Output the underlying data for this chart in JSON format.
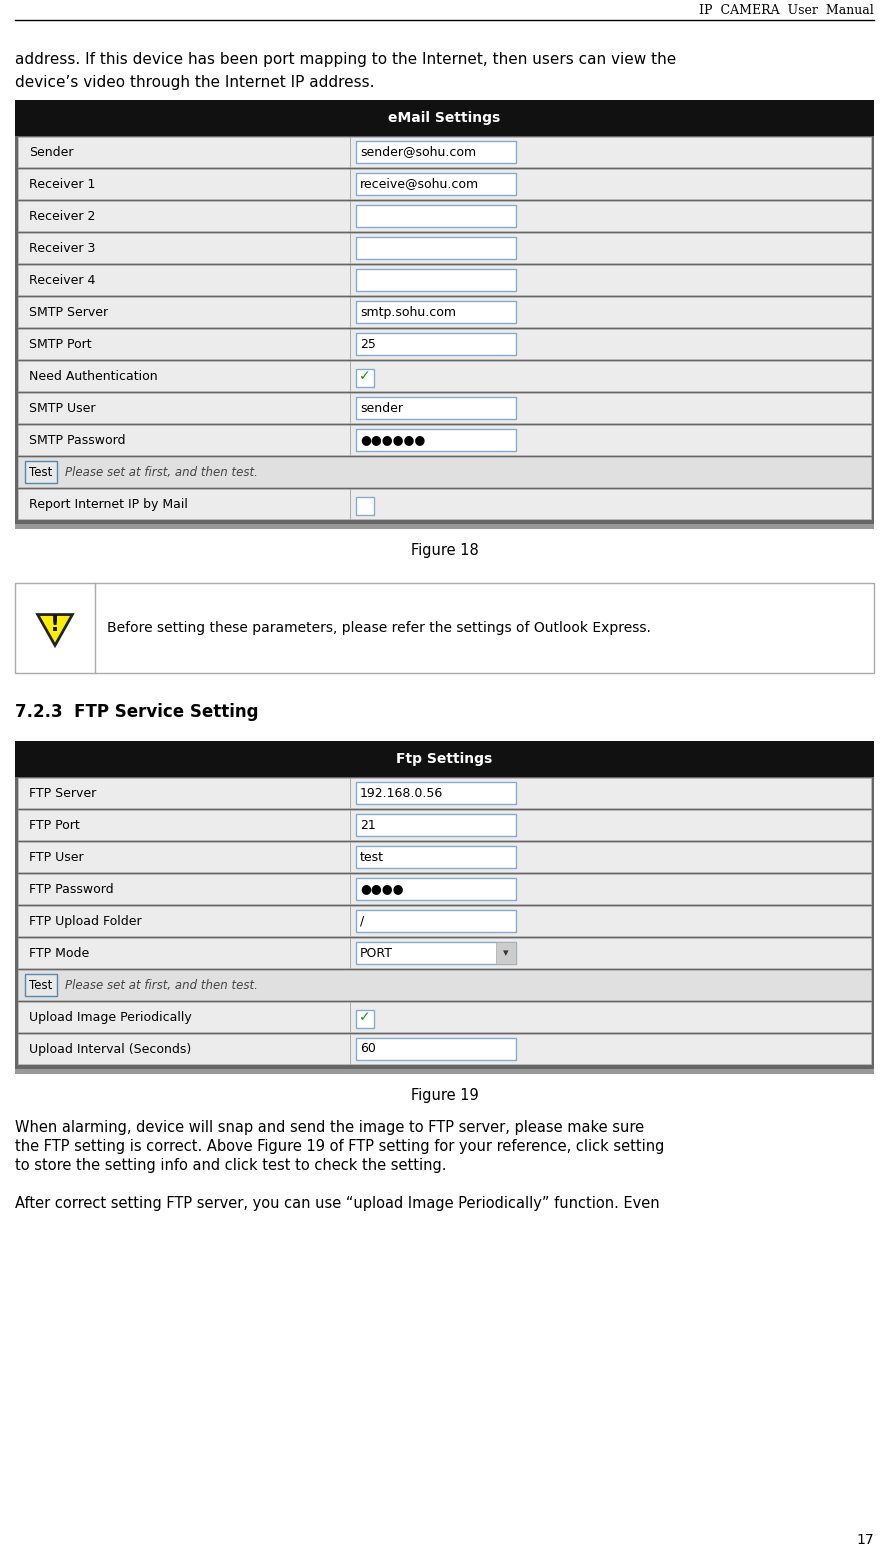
{
  "page_title": "IP  CAMERA  User  Manual",
  "page_number": "17",
  "bg_color": "#ffffff",
  "intro_text_line1": "address. If this device has been port mapping to the Internet, then users can view the",
  "intro_text_line2": "device’s video through the Internet IP address.",
  "email_table_title": "eMail Settings",
  "email_rows": [
    {
      "label": "Sender",
      "value": "sender@sohu.com",
      "type": "input"
    },
    {
      "label": "Receiver 1",
      "value": "receive@sohu.com",
      "type": "input"
    },
    {
      "label": "Receiver 2",
      "value": "",
      "type": "input"
    },
    {
      "label": "Receiver 3",
      "value": "",
      "type": "input"
    },
    {
      "label": "Receiver 4",
      "value": "",
      "type": "input"
    },
    {
      "label": "SMTP Server",
      "value": "smtp.sohu.com",
      "type": "input"
    },
    {
      "label": "SMTP Port",
      "value": "25",
      "type": "input"
    },
    {
      "label": "Need Authentication",
      "value": "",
      "type": "checkbox_checked"
    },
    {
      "label": "SMTP User",
      "value": "sender",
      "type": "input"
    },
    {
      "label": "SMTP Password",
      "value": "●●●●●●",
      "type": "input"
    }
  ],
  "email_test_label": "Please set at first, and then test.",
  "email_report_label": "Report Internet IP by Mail",
  "figure18_caption": "Figure 18",
  "warning_text": "Before setting these parameters, please refer the settings of Outlook Express.",
  "section_title": "7.2.3  FTP Service Setting",
  "ftp_table_title": "Ftp Settings",
  "ftp_rows": [
    {
      "label": "FTP Server",
      "value": "192.168.0.56",
      "type": "input"
    },
    {
      "label": "FTP Port",
      "value": "21",
      "type": "input"
    },
    {
      "label": "FTP User",
      "value": "test",
      "type": "input"
    },
    {
      "label": "FTP Password",
      "value": "●●●●",
      "type": "input"
    },
    {
      "label": "FTP Upload Folder",
      "value": "/",
      "type": "input"
    },
    {
      "label": "FTP Mode",
      "value": "PORT",
      "type": "dropdown"
    }
  ],
  "ftp_test_label": "Please set at first, and then test.",
  "ftp_upload_label": "Upload Image Periodically",
  "ftp_interval_label": "Upload Interval (Seconds)",
  "ftp_interval_value": "60",
  "figure19_caption": "Figure 19",
  "body_text": [
    "When alarming, device will snap and send the image to FTP server, please make sure",
    "the FTP setting is correct. Above Figure 19 of FTP setting for your reference, click setting",
    "to store the setting info and click test to check the setting."
  ],
  "body_text2": "After correct setting FTP server, you can use “upload Image Periodically” function. Even"
}
